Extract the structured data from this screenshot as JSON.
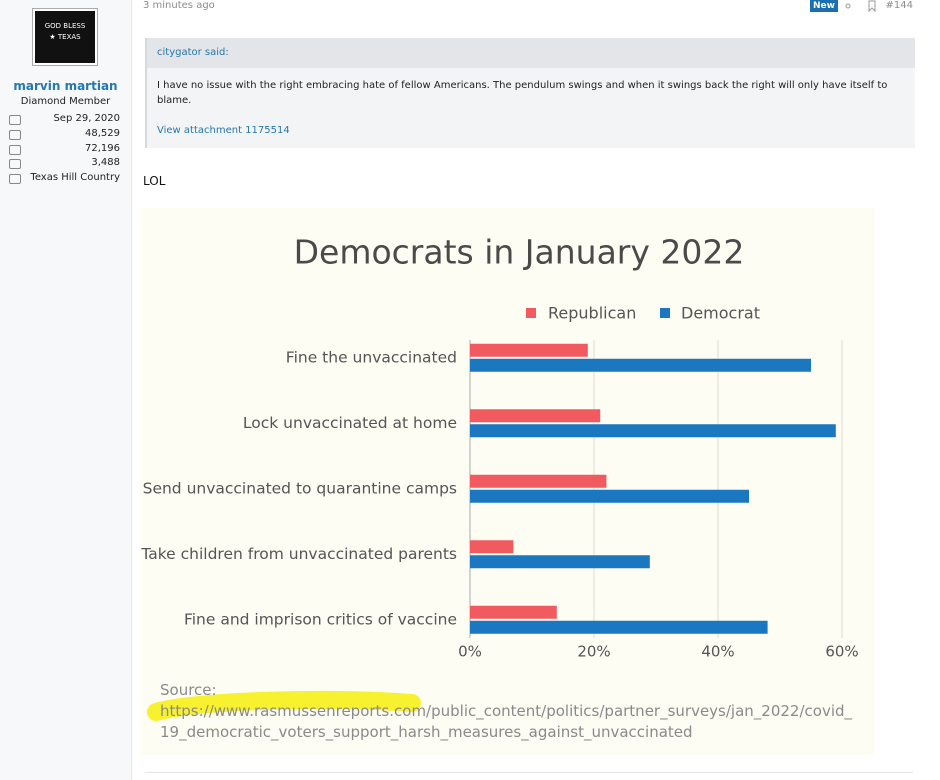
{
  "user": {
    "avatar_text": "GOD BLESS ★ TEXAS",
    "name": "marvin martian",
    "rank": "Diamond Member",
    "stats": [
      "Sep 29, 2020",
      "48,529",
      "72,196",
      "3,488",
      "Texas Hill Country"
    ]
  },
  "post": {
    "time": "3 minutes ago",
    "badge": "New",
    "number": "#144",
    "quote": {
      "author": "citygator said:",
      "body": "I have no issue with the right embracing hate of fellow Americans. The pendulum swings and when it swings back the right will only have itself to blame.",
      "attachment": "View attachment 1175514"
    },
    "text": "LOL"
  },
  "chart_data": {
    "type": "bar",
    "orientation": "horizontal",
    "title": "Democrats in January 2022",
    "categories": [
      "Fine the unvaccinated",
      "Lock unvaccinated at home",
      "Send unvaccinated to quarantine camps",
      "Take children from unvaccinated parents",
      "Fine and imprison critics of vaccine"
    ],
    "series": [
      {
        "name": "Republican",
        "color": "#f15b60",
        "values": [
          19,
          21,
          22,
          7,
          14
        ]
      },
      {
        "name": "Democrat",
        "color": "#1b78c0",
        "values": [
          55,
          59,
          45,
          29,
          48
        ]
      }
    ],
    "xlim": [
      0,
      60
    ],
    "xticks": [
      {
        "value": 0,
        "label": "0%"
      },
      {
        "value": 20,
        "label": "20%"
      },
      {
        "value": 40,
        "label": "40%"
      },
      {
        "value": 60,
        "label": "60%"
      }
    ],
    "grid": true,
    "legend": "top",
    "source_label": "Source:",
    "source_url": "https://www.rasmussenreports.com/public_content/politics/partner_surveys/jan_2022/covid_19_democratic_voters_support_harsh_measures_against_unvaccinated"
  }
}
